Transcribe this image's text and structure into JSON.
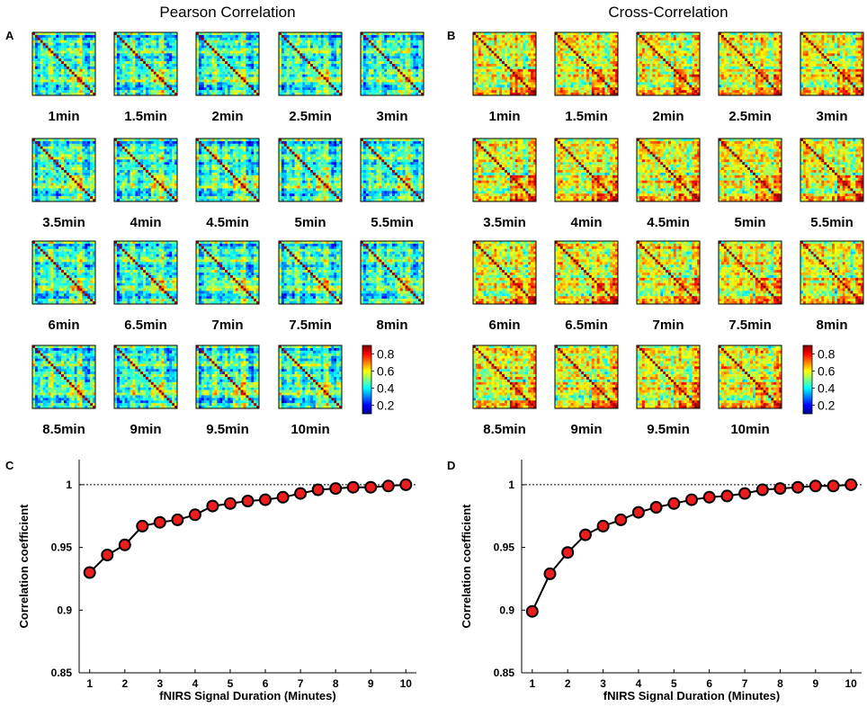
{
  "figure": {
    "panel_a": {
      "letter": "A",
      "title": "Pearson Correlation"
    },
    "panel_b": {
      "letter": "B",
      "title": "Cross-Correlation"
    },
    "panel_c": {
      "letter": "C"
    },
    "panel_d": {
      "letter": "D"
    },
    "colors": {
      "marker_fill": "#ee1c1c",
      "marker_edge": "#000000",
      "line": "#000000",
      "reference_line": "#000000"
    }
  },
  "chart_data": [
    {
      "type": "heatmap",
      "panel": "A",
      "title": "Pearson Correlation",
      "labels": [
        "1min",
        "1.5min",
        "2min",
        "2.5min",
        "3min",
        "3.5min",
        "4min",
        "4.5min",
        "5min",
        "5.5min",
        "6min",
        "6.5min",
        "7min",
        "7.5min",
        "8min",
        "8.5min",
        "9min",
        "9.5min",
        "10min"
      ],
      "colorbar": {
        "ticks": [
          "0.8",
          "0.6",
          "0.4",
          "0.2"
        ],
        "range": [
          0.1,
          0.9
        ],
        "colormap": "jet"
      }
    },
    {
      "type": "heatmap",
      "panel": "B",
      "title": "Cross-Correlation",
      "labels": [
        "1min",
        "1.5min",
        "2min",
        "2.5min",
        "3min",
        "3.5min",
        "4min",
        "4.5min",
        "5min",
        "5.5min",
        "6min",
        "6.5min",
        "7min",
        "7.5min",
        "8min",
        "8.5min",
        "9min",
        "9.5min",
        "10min"
      ],
      "colorbar": {
        "ticks": [
          "0.8",
          "0.6",
          "0.4",
          "0.2"
        ],
        "range": [
          0.1,
          0.9
        ],
        "colormap": "jet"
      }
    },
    {
      "type": "line",
      "panel": "C",
      "x": [
        1,
        1.5,
        2,
        2.5,
        3,
        3.5,
        4,
        4.5,
        5,
        5.5,
        6,
        6.5,
        7,
        7.5,
        8,
        8.5,
        9,
        9.5,
        10
      ],
      "y": [
        0.93,
        0.944,
        0.952,
        0.967,
        0.97,
        0.972,
        0.976,
        0.983,
        0.985,
        0.987,
        0.988,
        0.99,
        0.993,
        0.996,
        0.997,
        0.998,
        0.998,
        0.999,
        1.0
      ],
      "xlabel": "fNIRS Signal Duration (Minutes)",
      "ylabel": "Correlation coefficient",
      "xlim": [
        0.7,
        10.3
      ],
      "ylim": [
        0.85,
        1.02
      ],
      "xticks": [
        "1",
        "2",
        "3",
        "4",
        "5",
        "6",
        "7",
        "8",
        "9",
        "10"
      ],
      "yticks": [
        "0.85",
        "0.9",
        "0.95",
        "1"
      ],
      "reference_y": 1
    },
    {
      "type": "line",
      "panel": "D",
      "x": [
        1,
        1.5,
        2,
        2.5,
        3,
        3.5,
        4,
        4.5,
        5,
        5.5,
        6,
        6.5,
        7,
        7.5,
        8,
        8.5,
        9,
        9.5,
        10
      ],
      "y": [
        0.899,
        0.929,
        0.946,
        0.96,
        0.967,
        0.972,
        0.978,
        0.982,
        0.985,
        0.988,
        0.99,
        0.991,
        0.993,
        0.996,
        0.997,
        0.998,
        0.999,
        0.999,
        1.0
      ],
      "xlabel": "fNIRS Signal Duration (Minutes)",
      "ylabel": "Correlation coefficient",
      "xlim": [
        0.7,
        10.3
      ],
      "ylim": [
        0.85,
        1.02
      ],
      "xticks": [
        "1",
        "2",
        "3",
        "4",
        "5",
        "6",
        "7",
        "8",
        "9",
        "10"
      ],
      "yticks": [
        "0.85",
        "0.9",
        "0.95",
        "1"
      ],
      "reference_y": 1
    }
  ]
}
